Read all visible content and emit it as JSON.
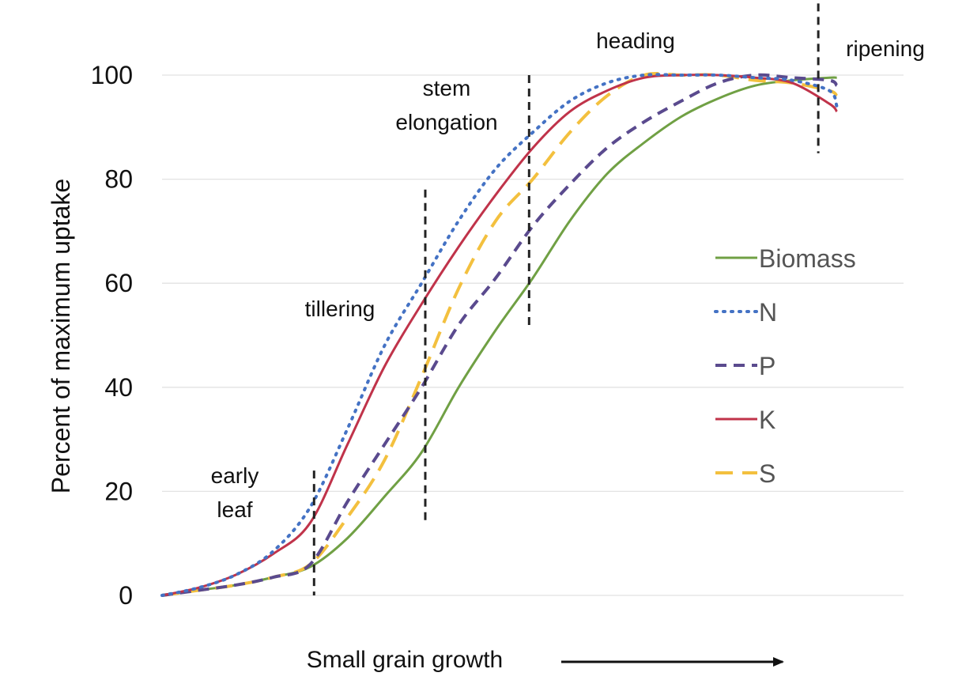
{
  "chart_data": {
    "type": "line",
    "title": "",
    "xlabel": "Small grain growth",
    "ylabel": "Percent of maximum uptake",
    "ylim": [
      0,
      100
    ],
    "xlim": [
      0,
      100
    ],
    "y_ticks": [
      0,
      20,
      40,
      60,
      80,
      100
    ],
    "grid": true,
    "legend_position": "right",
    "x_axis_arrow": true,
    "stages": [
      {
        "name": "early leaf",
        "lines": [
          "early",
          "leaf"
        ],
        "x": 20.5
      },
      {
        "name": "tillering",
        "lines": [
          "tillering"
        ],
        "x": 35.5
      },
      {
        "name": "stem elongation",
        "lines": [
          "stem",
          "elongation"
        ],
        "x": 49.5
      },
      {
        "name": "heading",
        "lines": [
          "heading"
        ],
        "x": null
      },
      {
        "name": "ripening",
        "lines": [
          "ripening"
        ],
        "x": 88.5
      }
    ],
    "series": [
      {
        "name": "Biomass",
        "color": "#70a044",
        "style": "solid",
        "x": [
          0,
          5,
          10,
          15,
          20,
          25,
          30,
          35,
          40,
          45,
          50,
          55,
          60,
          65,
          70,
          75,
          80,
          85,
          90,
          91
        ],
        "y": [
          0,
          1,
          2,
          3.5,
          5.5,
          11,
          19,
          27.5,
          40,
          51,
          61,
          72,
          81,
          87,
          92,
          95.5,
          98,
          99,
          99.5,
          99.5
        ]
      },
      {
        "name": "N",
        "color": "#4472c4",
        "style": "dotted",
        "x": [
          0,
          5,
          10,
          15,
          20,
          25,
          30,
          35,
          40,
          45,
          50,
          55,
          60,
          65,
          70,
          75,
          80,
          85,
          90,
          91
        ],
        "y": [
          0,
          1.5,
          4,
          8.5,
          17,
          32,
          48,
          60,
          72,
          82,
          89,
          95,
          98.5,
          100,
          100,
          100,
          99.5,
          99,
          97,
          94
        ]
      },
      {
        "name": "P",
        "color": "#5a4a8e",
        "style": "dashed",
        "x": [
          0,
          5,
          10,
          15,
          20,
          25,
          30,
          35,
          40,
          45,
          50,
          55,
          60,
          65,
          70,
          75,
          80,
          85,
          90,
          91
        ],
        "y": [
          0,
          1,
          2,
          3.5,
          6,
          18,
          29,
          40,
          52,
          61,
          71,
          79,
          86,
          91,
          95,
          98.5,
          100,
          99.5,
          99,
          98
        ]
      },
      {
        "name": "K",
        "color": "#c0334a",
        "style": "solid",
        "x": [
          0,
          5,
          10,
          15,
          20,
          25,
          30,
          35,
          40,
          45,
          50,
          55,
          60,
          65,
          70,
          75,
          80,
          85,
          90,
          91
        ],
        "y": [
          0,
          1.5,
          4,
          8,
          14,
          29,
          44,
          56,
          67,
          77,
          86,
          93,
          97,
          99.5,
          100,
          100,
          99.5,
          98.5,
          94.5,
          93
        ]
      },
      {
        "name": "S",
        "color": "#f3c03e",
        "style": "longdash",
        "x": [
          0,
          5,
          10,
          15,
          20,
          25,
          30,
          35,
          40,
          45,
          50,
          55,
          60,
          65,
          70,
          75,
          80,
          85,
          90,
          91
        ],
        "y": [
          0,
          1,
          2,
          3.5,
          6,
          15,
          26,
          42,
          59,
          72,
          80,
          89,
          96,
          100,
          100,
          100,
          99,
          98.5,
          97,
          96
        ]
      }
    ]
  }
}
